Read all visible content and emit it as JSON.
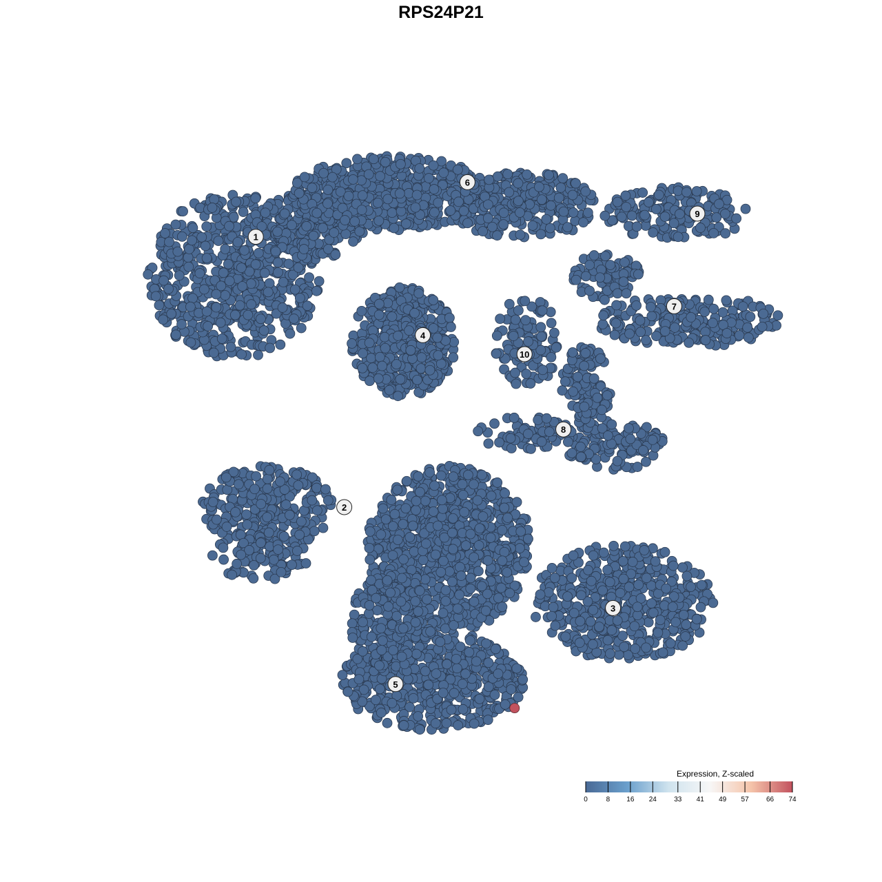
{
  "chart_data": {
    "type": "scatter",
    "title": "RPS24P21",
    "xlabel": "",
    "ylabel": "",
    "grid": false,
    "axes_shown": false,
    "xlim": [
      -40,
      40
    ],
    "ylim": [
      -40,
      40
    ],
    "point_color_default": "#4b6a93",
    "clusters": [
      {
        "label": "1",
        "label_pos": [
          -22.4,
          24.7
        ],
        "blobs": [
          {
            "c": [
              -25,
              20
            ],
            "r": [
              10.5,
              10
            ],
            "n": 650
          },
          {
            "c": [
              -16,
              26
            ],
            "r": [
              7,
              4
            ],
            "n": 200
          }
        ]
      },
      {
        "label": "6",
        "label_pos": [
          3.2,
          31.3
        ],
        "blobs": [
          {
            "c": [
              -6,
              30
            ],
            "r": [
              12,
              4.5
            ],
            "n": 520
          },
          {
            "c": [
              10,
              28.5
            ],
            "r": [
              9,
              4
            ],
            "n": 280
          }
        ]
      },
      {
        "label": "4",
        "label_pos": [
          -2.2,
          12.8
        ],
        "blobs": [
          {
            "c": [
              -4.5,
              12
            ],
            "r": [
              6.3,
              6.6
            ],
            "n": 480
          }
        ]
      },
      {
        "label": "9",
        "label_pos": [
          31,
          27.5
        ],
        "blobs": [
          {
            "c": [
              28.5,
              27.5
            ],
            "r": [
              9,
              3.2
            ],
            "n": 160
          }
        ]
      },
      {
        "label": "7",
        "label_pos": [
          28.2,
          16.3
        ],
        "blobs": [
          {
            "c": [
              30,
              14.5
            ],
            "r": [
              11,
              3.2
            ],
            "n": 220
          },
          {
            "c": [
              20,
              20
            ],
            "r": [
              4,
              3
            ],
            "n": 80
          }
        ]
      },
      {
        "label": "10",
        "label_pos": [
          10.1,
          10.5
        ],
        "blobs": [
          {
            "c": [
              10.5,
              12
            ],
            "r": [
              4,
              5.5
            ],
            "n": 110
          }
        ]
      },
      {
        "label": "8",
        "label_pos": [
          14.8,
          1.4
        ],
        "blobs": [
          {
            "c": [
              21,
              -0.5
            ],
            "r": [
              6,
              3
            ],
            "n": 130
          },
          {
            "c": [
              17.5,
              6.5
            ],
            "r": [
              3,
              5
            ],
            "n": 110
          },
          {
            "c": [
              10,
              1
            ],
            "r": [
              6,
              2
            ],
            "n": 70
          }
        ]
      },
      {
        "label": "2",
        "label_pos": [
          -11.7,
          -8
        ],
        "blobs": [
          {
            "c": [
              -21,
              -8
            ],
            "r": [
              8,
              5
            ],
            "n": 260
          },
          {
            "c": [
              -22,
              -14
            ],
            "r": [
              6,
              3
            ],
            "n": 90
          }
        ]
      },
      {
        "label": "3",
        "label_pos": [
          20.8,
          -20.2
        ],
        "blobs": [
          {
            "c": [
              22,
              -19.5
            ],
            "r": [
              11,
              7
            ],
            "n": 520
          }
        ]
      },
      {
        "label": "5",
        "label_pos": [
          -5.5,
          -29.4
        ],
        "blobs": [
          {
            "c": [
              -1,
              -29
            ],
            "r": [
              11,
              6
            ],
            "n": 560
          },
          {
            "c": [
              1,
              -13
            ],
            "r": [
              10,
              10
            ],
            "n": 900
          },
          {
            "c": [
              -6,
              -22
            ],
            "r": [
              5,
              6
            ],
            "n": 200
          }
        ]
      }
    ],
    "highlighted_points": [
      {
        "x": 8.9,
        "y": -32.3,
        "value": 74
      }
    ],
    "legend": {
      "title": "Expression, Z-scaled",
      "position": "bottom-right",
      "ticks": [
        "0",
        "8",
        "16",
        "24",
        "33",
        "41",
        "49",
        "57",
        "66",
        "74"
      ],
      "range": [
        0,
        74
      ],
      "colors": [
        "#4a6a96",
        "#6a9fcc",
        "#cfe3ee",
        "#f7f7f7",
        "#f5c4aa",
        "#c2525e"
      ]
    }
  }
}
